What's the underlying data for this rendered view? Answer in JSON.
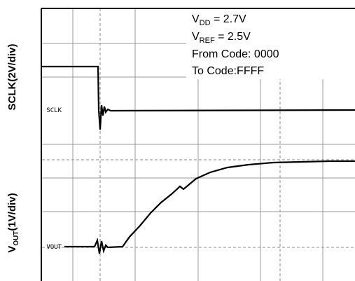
{
  "y_axis_labels": {
    "top": "SCLK(2V/div)",
    "bottom": {
      "main": "V",
      "sub": "OUT",
      "rest": "(1V/div)"
    }
  },
  "annotations": [
    {
      "main": "V",
      "sub": "DD",
      "rest": " = 2.7V"
    },
    {
      "main": "V",
      "sub": "REF",
      "rest": " = 2.5V"
    },
    {
      "text": "From Code: 0000"
    },
    {
      "text": "To Code:FFFF"
    }
  ],
  "trace_labels": [
    "SCLK",
    "VOUT"
  ]
}
